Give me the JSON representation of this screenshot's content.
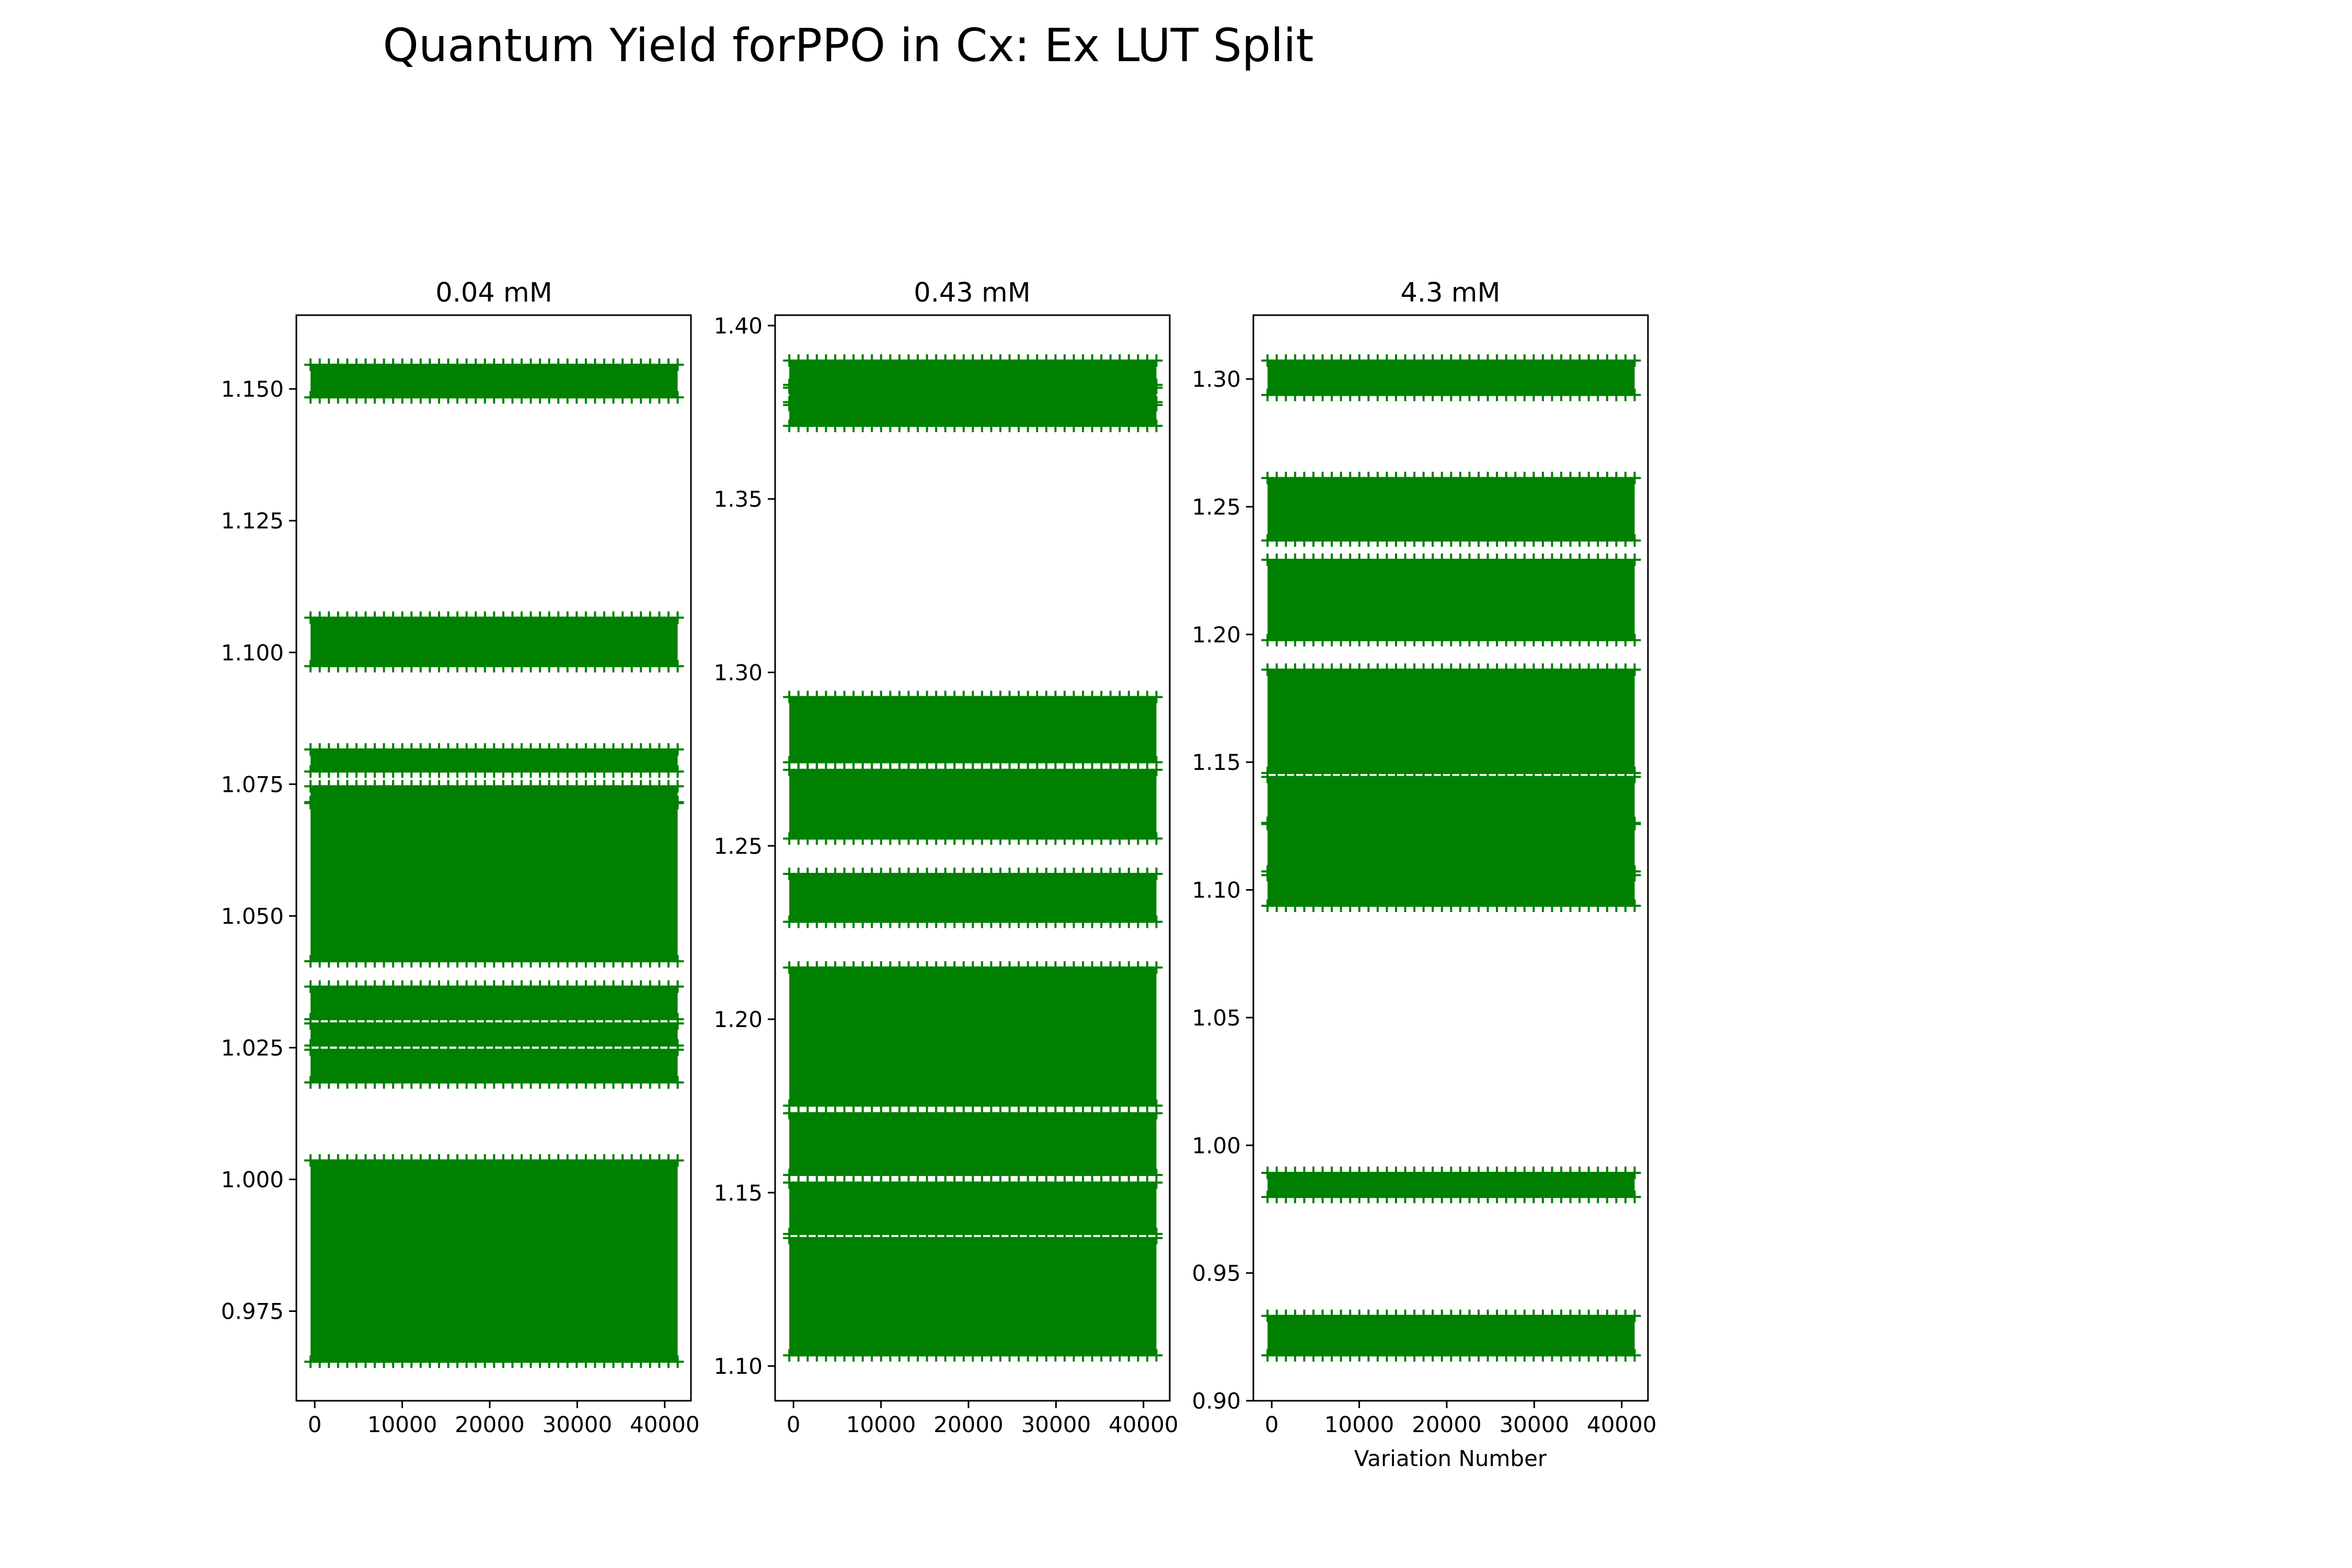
{
  "figure": {
    "title": "Quantum Yield forPPO in Cx: Ex LUT Split",
    "marker": "+",
    "marker_color": "#008000"
  },
  "chart_data": [
    {
      "type": "scatter",
      "title": "0.04 mM",
      "xlabel": "",
      "ylabel": "",
      "xlim": [
        -2100,
        43000
      ],
      "ylim": [
        0.958,
        1.164
      ],
      "xticks": [
        0,
        10000,
        20000,
        30000,
        40000
      ],
      "xtick_labels": [
        "0",
        "10000",
        "20000",
        "30000",
        "40000"
      ],
      "yticks": [
        0.975,
        1.0,
        1.025,
        1.05,
        1.075,
        1.1,
        1.125,
        1.15
      ],
      "ytick_labels": [
        "0.975",
        "1.000",
        "1.025",
        "1.050",
        "1.075",
        "1.100",
        "1.125",
        "1.150"
      ],
      "x_range": [
        0,
        41000
      ],
      "y_value_bands": [
        [
          1.149,
          1.154
        ],
        [
          1.098,
          1.106
        ],
        [
          1.078,
          1.081
        ],
        [
          1.072,
          1.074
        ],
        [
          1.042,
          1.071
        ],
        [
          1.031,
          1.036
        ],
        [
          1.026,
          1.029
        ],
        [
          1.019,
          1.024
        ],
        [
          0.966,
          1.003
        ]
      ]
    },
    {
      "type": "scatter",
      "title": "0.43 mM",
      "xlabel": "",
      "ylabel": "",
      "xlim": [
        -2100,
        43000
      ],
      "ylim": [
        1.09,
        1.403
      ],
      "xticks": [
        0,
        10000,
        20000,
        30000,
        40000
      ],
      "xtick_labels": [
        "0",
        "10000",
        "20000",
        "30000",
        "40000"
      ],
      "yticks": [
        1.1,
        1.15,
        1.2,
        1.25,
        1.3,
        1.35,
        1.4
      ],
      "ytick_labels": [
        "1.10",
        "1.15",
        "1.20",
        "1.25",
        "1.30",
        "1.35",
        "1.40"
      ],
      "x_range": [
        0,
        41000
      ],
      "y_value_bands": [
        [
          1.383,
          1.389
        ],
        [
          1.378,
          1.382
        ],
        [
          1.372,
          1.377
        ],
        [
          1.275,
          1.292
        ],
        [
          1.253,
          1.271
        ],
        [
          1.229,
          1.241
        ],
        [
          1.176,
          1.214
        ],
        [
          1.156,
          1.172
        ],
        [
          1.139,
          1.152
        ],
        [
          1.104,
          1.136
        ]
      ]
    },
    {
      "type": "scatter",
      "title": "4.3 mM",
      "xlabel": "Variation Number",
      "ylabel": "",
      "xlim": [
        -2100,
        43000
      ],
      "ylim": [
        0.9,
        1.325
      ],
      "xticks": [
        0,
        10000,
        20000,
        30000,
        40000
      ],
      "xtick_labels": [
        "0",
        "10000",
        "20000",
        "30000",
        "40000"
      ],
      "yticks": [
        0.9,
        0.95,
        1.0,
        1.05,
        1.1,
        1.15,
        1.2,
        1.25,
        1.3
      ],
      "ytick_labels": [
        "0.90",
        "0.95",
        "1.00",
        "1.05",
        "1.10",
        "1.15",
        "1.20",
        "1.25",
        "1.30"
      ],
      "x_range": [
        0,
        41000
      ],
      "y_value_bands": [
        [
          1.295,
          1.306
        ],
        [
          1.238,
          1.26
        ],
        [
          1.199,
          1.228
        ],
        [
          1.147,
          1.185
        ],
        [
          1.127,
          1.143
        ],
        [
          1.107,
          1.125
        ],
        [
          1.095,
          1.106
        ],
        [
          0.981,
          0.988
        ],
        [
          0.919,
          0.932
        ]
      ]
    }
  ]
}
